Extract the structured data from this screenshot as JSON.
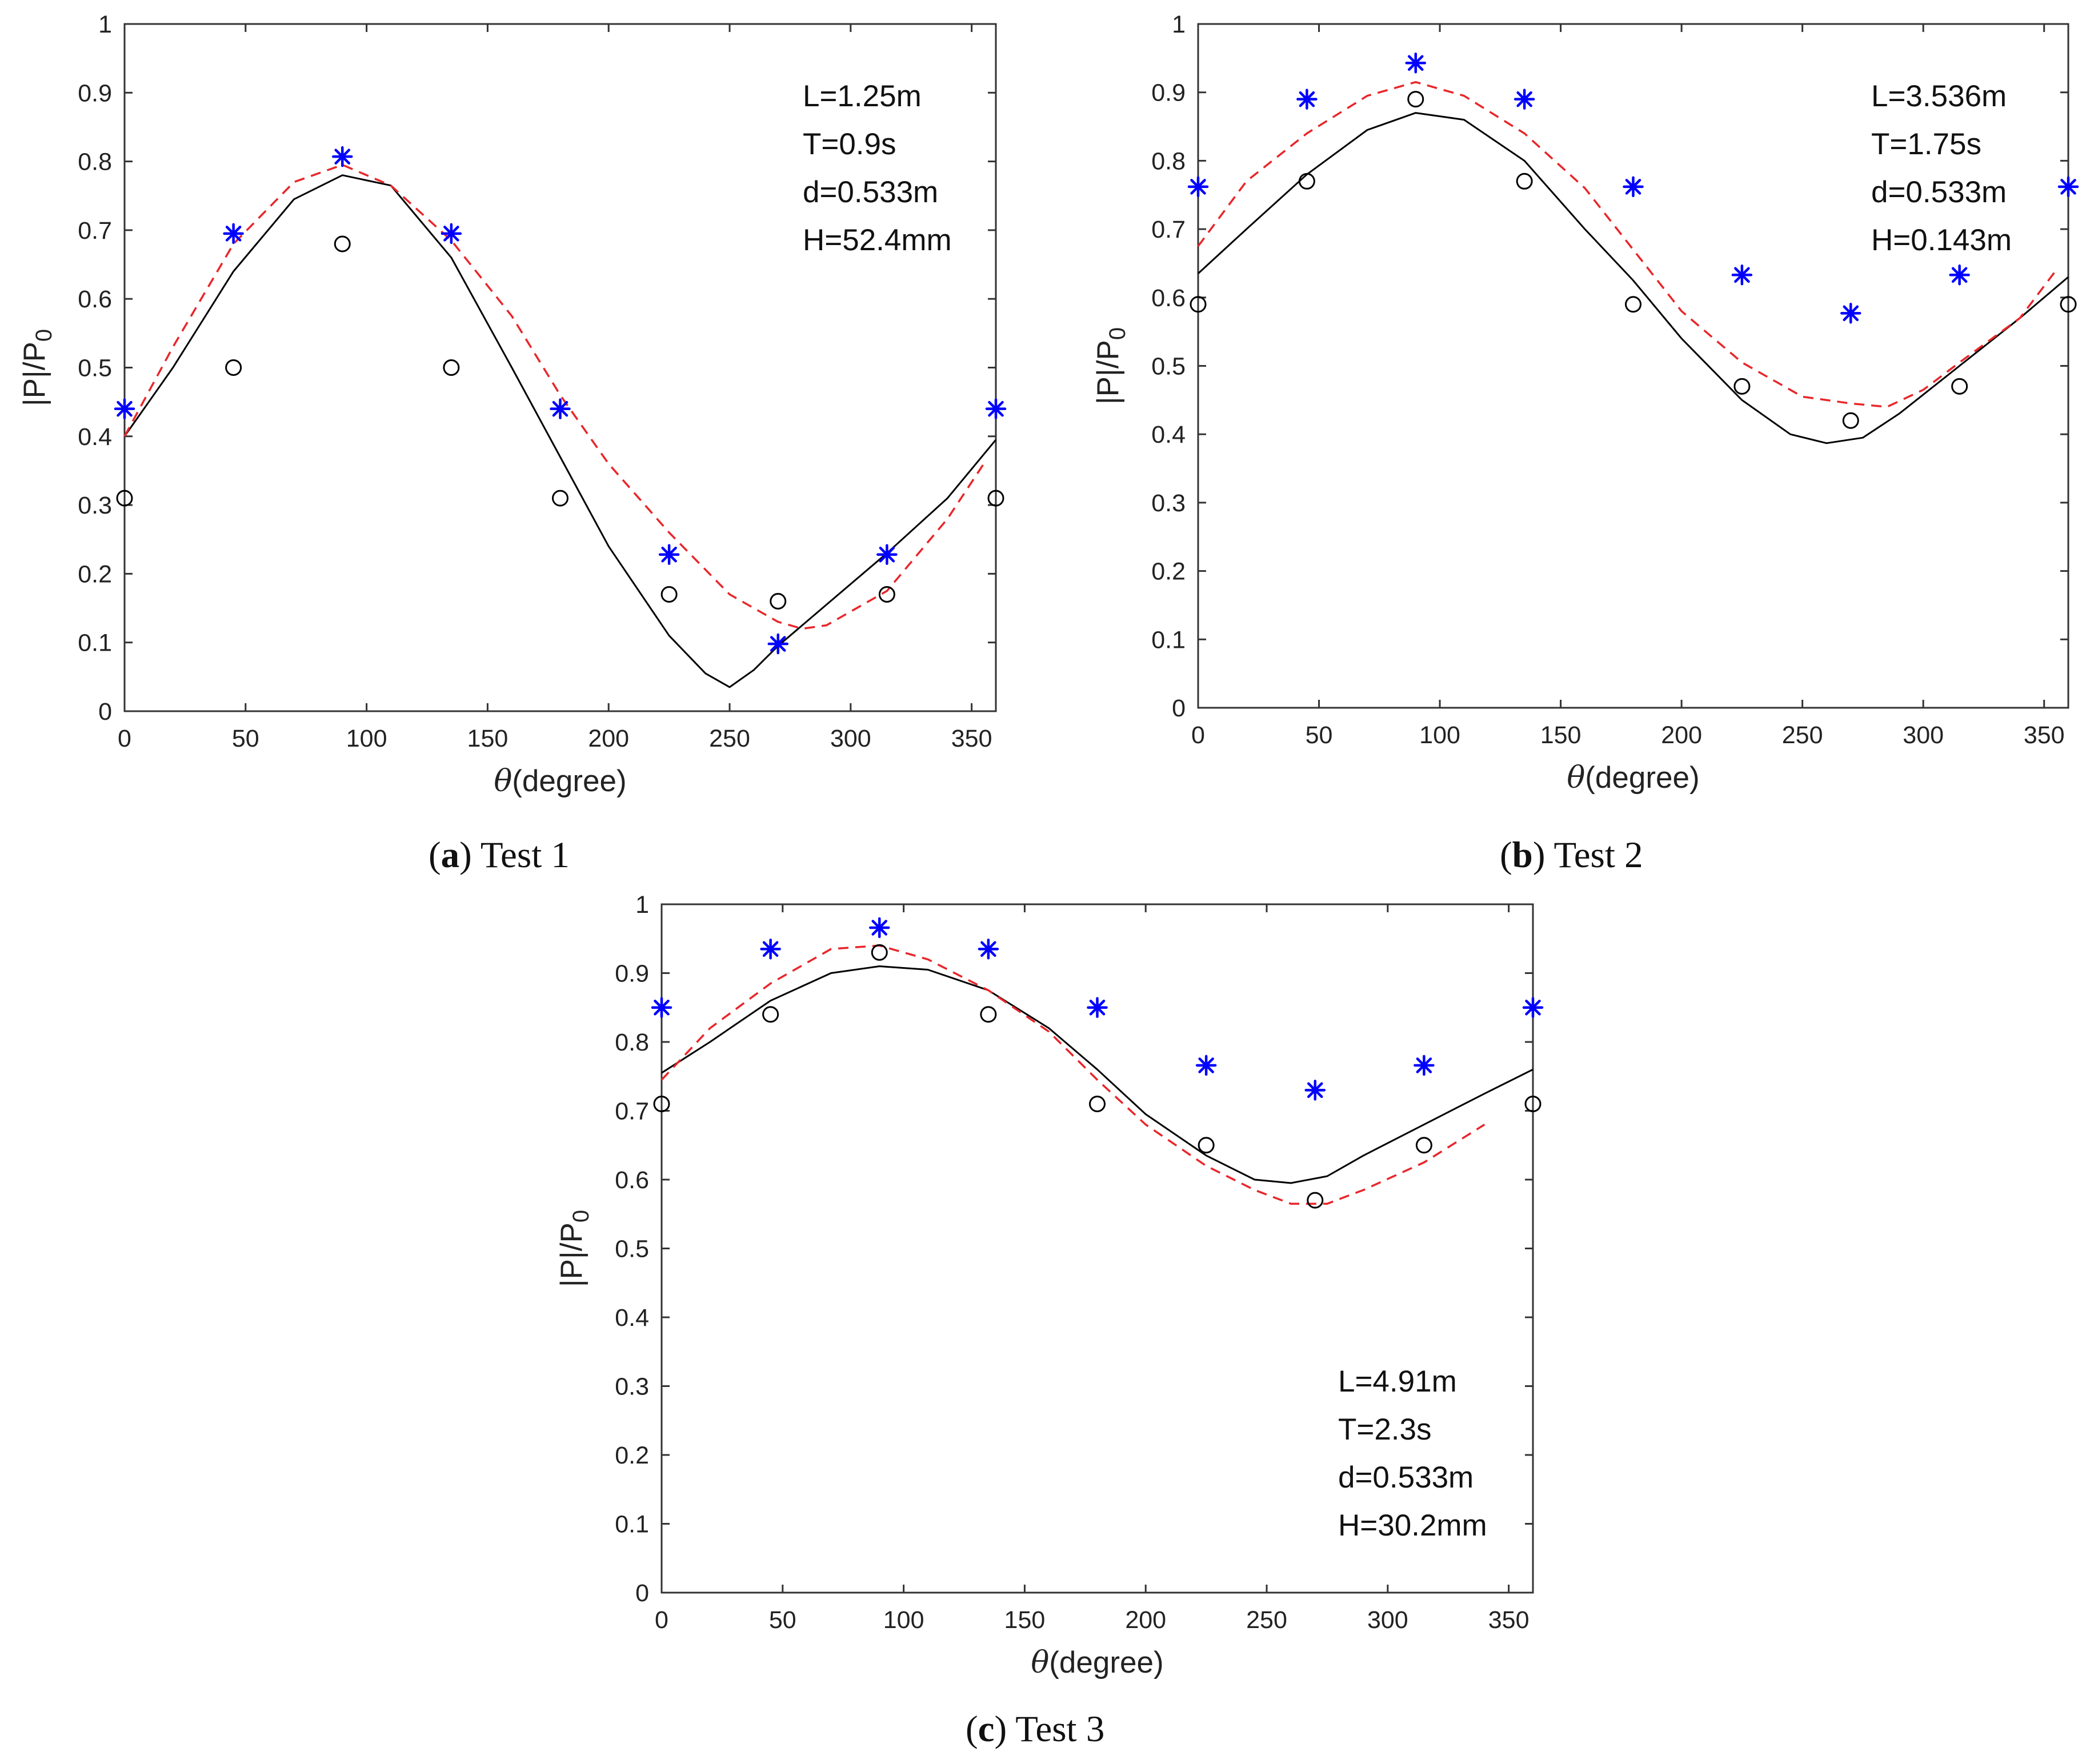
{
  "figure": {
    "ylabel": "|P|/P0",
    "xlabel_symbol": "θ",
    "xlabel_text": "(degree)",
    "colors": {
      "simulated": "#000000",
      "analytic": "#e8262a",
      "experiment": "#0000ff",
      "axes": "#333333"
    }
  },
  "chart_data": [
    {
      "id": "a",
      "type": "line",
      "caption": {
        "letter": "(a)",
        "text": "Test 1"
      },
      "xlabel": "θ(degree)",
      "ylabel": "|P|/P0",
      "xlim": [
        0,
        360
      ],
      "ylim": [
        0,
        1
      ],
      "xticks": [
        "0",
        "50",
        "100",
        "150",
        "200",
        "250",
        "300",
        "350"
      ],
      "yticks": [
        "0",
        "0.1",
        "0.2",
        "0.3",
        "0.4",
        "0.5",
        "0.6",
        "0.7",
        "0.8",
        "0.9",
        "1"
      ],
      "annotations": [
        "L=1.25m",
        "T=0.9s",
        "d=0.533m",
        "H=52.4mm"
      ],
      "annotation_position": "top-right",
      "series": [
        {
          "name": "solid",
          "style": "solid",
          "x": [
            0,
            20,
            45,
            70,
            90,
            110,
            135,
            160,
            180,
            200,
            225,
            240,
            250,
            260,
            270,
            290,
            315,
            340,
            360
          ],
          "y": [
            0.4,
            0.5,
            0.64,
            0.745,
            0.78,
            0.765,
            0.66,
            0.5,
            0.37,
            0.24,
            0.11,
            0.055,
            0.035,
            0.06,
            0.095,
            0.155,
            0.23,
            0.31,
            0.395
          ]
        },
        {
          "name": "dashed",
          "style": "dashed",
          "x": [
            0,
            20,
            45,
            70,
            90,
            110,
            135,
            160,
            180,
            200,
            225,
            250,
            270,
            280,
            290,
            315,
            340,
            355
          ],
          "y": [
            0.4,
            0.53,
            0.68,
            0.77,
            0.795,
            0.765,
            0.685,
            0.575,
            0.46,
            0.36,
            0.26,
            0.17,
            0.13,
            0.12,
            0.125,
            0.175,
            0.28,
            0.36
          ]
        },
        {
          "name": "circles",
          "style": "circle",
          "x": [
            0,
            45,
            90,
            135,
            180,
            225,
            270,
            315,
            360
          ],
          "y": [
            0.31,
            0.5,
            0.68,
            0.5,
            0.31,
            0.17,
            0.16,
            0.17,
            0.31
          ]
        },
        {
          "name": "stars",
          "style": "star",
          "x": [
            0,
            45,
            90,
            135,
            180,
            225,
            270,
            315,
            360
          ],
          "y": [
            0.44,
            0.695,
            0.807,
            0.695,
            0.44,
            0.228,
            0.098,
            0.228,
            0.44
          ]
        }
      ]
    },
    {
      "id": "b",
      "type": "line",
      "caption": {
        "letter": "(b)",
        "text": "Test 2"
      },
      "xlabel": "θ(degree)",
      "ylabel": "|P|/P0",
      "xlim": [
        0,
        360
      ],
      "ylim": [
        0,
        1
      ],
      "xticks": [
        "0",
        "50",
        "100",
        "150",
        "200",
        "250",
        "300",
        "350"
      ],
      "yticks": [
        "0",
        "0.1",
        "0.2",
        "0.3",
        "0.4",
        "0.5",
        "0.6",
        "0.7",
        "0.8",
        "0.9",
        "1"
      ],
      "annotations": [
        "L=3.536m",
        "T=1.75s",
        "d=0.533m",
        "H=0.143m"
      ],
      "annotation_position": "top-right",
      "series": [
        {
          "name": "solid",
          "style": "solid",
          "x": [
            0,
            20,
            45,
            70,
            90,
            110,
            135,
            160,
            180,
            200,
            225,
            245,
            260,
            275,
            290,
            315,
            340,
            360
          ],
          "y": [
            0.635,
            0.7,
            0.78,
            0.845,
            0.87,
            0.86,
            0.8,
            0.7,
            0.625,
            0.54,
            0.45,
            0.4,
            0.387,
            0.395,
            0.43,
            0.5,
            0.57,
            0.63
          ]
        },
        {
          "name": "dashed",
          "style": "dashed",
          "x": [
            0,
            20,
            45,
            70,
            90,
            110,
            135,
            160,
            180,
            200,
            225,
            250,
            270,
            285,
            300,
            315,
            340,
            355
          ],
          "y": [
            0.675,
            0.77,
            0.84,
            0.895,
            0.915,
            0.895,
            0.84,
            0.76,
            0.67,
            0.58,
            0.505,
            0.455,
            0.445,
            0.44,
            0.465,
            0.505,
            0.57,
            0.64
          ]
        },
        {
          "name": "circles",
          "style": "circle",
          "x": [
            0,
            45,
            90,
            135,
            180,
            225,
            270,
            315,
            360
          ],
          "y": [
            0.59,
            0.77,
            0.89,
            0.77,
            0.59,
            0.47,
            0.42,
            0.47,
            0.59
          ]
        },
        {
          "name": "stars",
          "style": "star",
          "x": [
            0,
            45,
            90,
            135,
            180,
            225,
            270,
            315,
            360
          ],
          "y": [
            0.762,
            0.89,
            0.943,
            0.89,
            0.762,
            0.633,
            0.577,
            0.633,
            0.762
          ]
        }
      ]
    },
    {
      "id": "c",
      "type": "line",
      "caption": {
        "letter": "(c)",
        "text": "Test 3"
      },
      "xlabel": "θ(degree)",
      "ylabel": "|P|/P0",
      "xlim": [
        0,
        360
      ],
      "ylim": [
        0,
        1
      ],
      "xticks": [
        "0",
        "50",
        "100",
        "150",
        "200",
        "250",
        "300",
        "350"
      ],
      "yticks": [
        "0",
        "0.1",
        "0.2",
        "0.3",
        "0.4",
        "0.5",
        "0.6",
        "0.7",
        "0.8",
        "0.9",
        "1"
      ],
      "annotations": [
        "L=4.91m",
        "T=2.3s",
        "d=0.533m",
        "H=30.2mm"
      ],
      "annotation_position": "bottom-right",
      "series": [
        {
          "name": "solid",
          "style": "solid",
          "x": [
            0,
            20,
            45,
            70,
            90,
            110,
            135,
            160,
            180,
            200,
            225,
            245,
            260,
            275,
            290,
            315,
            340,
            360
          ],
          "y": [
            0.755,
            0.8,
            0.86,
            0.9,
            0.91,
            0.905,
            0.875,
            0.82,
            0.76,
            0.695,
            0.635,
            0.6,
            0.595,
            0.605,
            0.635,
            0.68,
            0.725,
            0.76
          ]
        },
        {
          "name": "dashed",
          "style": "dashed",
          "x": [
            0,
            20,
            45,
            70,
            90,
            110,
            135,
            160,
            180,
            200,
            225,
            245,
            260,
            275,
            290,
            315,
            340
          ],
          "y": [
            0.745,
            0.82,
            0.885,
            0.935,
            0.94,
            0.92,
            0.875,
            0.815,
            0.745,
            0.68,
            0.62,
            0.585,
            0.565,
            0.565,
            0.585,
            0.625,
            0.68
          ]
        },
        {
          "name": "circles",
          "style": "circle",
          "x": [
            0,
            45,
            90,
            135,
            180,
            225,
            270,
            315,
            360
          ],
          "y": [
            0.71,
            0.84,
            0.93,
            0.84,
            0.71,
            0.65,
            0.57,
            0.65,
            0.71
          ]
        },
        {
          "name": "stars",
          "style": "star",
          "x": [
            0,
            45,
            90,
            135,
            180,
            225,
            270,
            315,
            360
          ],
          "y": [
            0.85,
            0.935,
            0.966,
            0.935,
            0.85,
            0.766,
            0.73,
            0.766,
            0.85
          ]
        }
      ]
    }
  ]
}
